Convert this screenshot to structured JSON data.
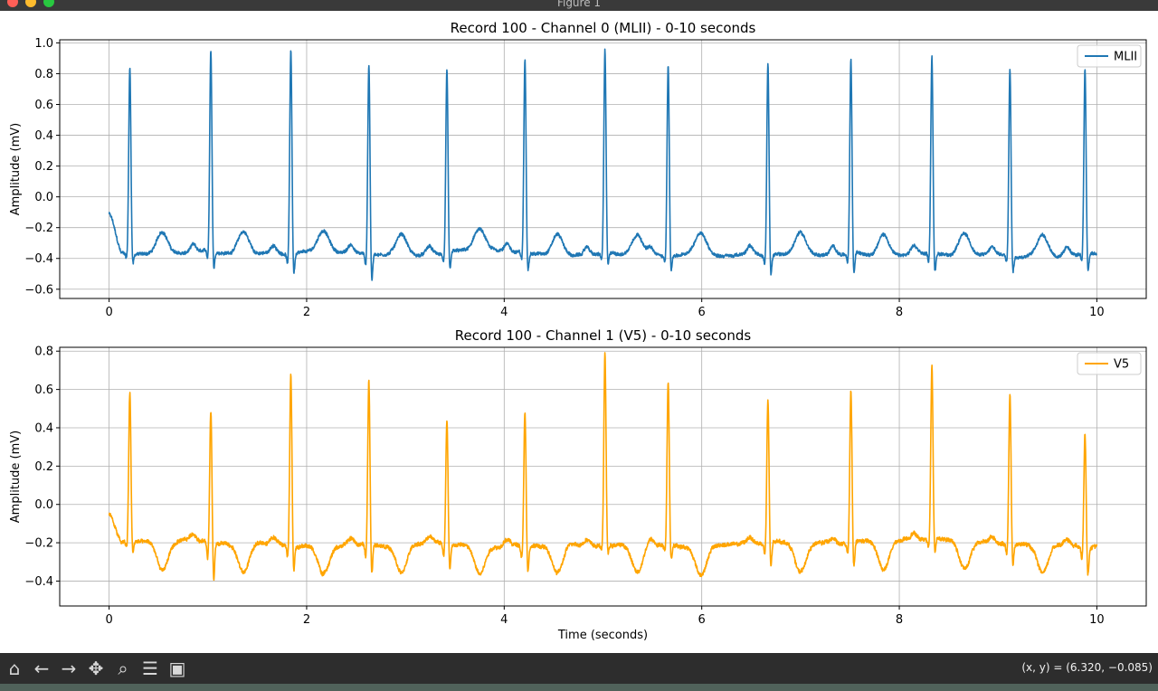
{
  "window": {
    "title": "Figure 1"
  },
  "toolbar": {
    "buttons": [
      {
        "name": "home",
        "icon": "home-icon",
        "glyph": "⌂"
      },
      {
        "name": "back",
        "icon": "arrow-left-icon",
        "glyph": "←"
      },
      {
        "name": "forward",
        "icon": "arrow-right-icon",
        "glyph": "→"
      },
      {
        "name": "pan",
        "icon": "move-icon",
        "glyph": "✥"
      },
      {
        "name": "zoom",
        "icon": "magnifier-icon",
        "glyph": "⌕"
      },
      {
        "name": "configure",
        "icon": "sliders-icon",
        "glyph": "☰"
      },
      {
        "name": "save",
        "icon": "floppy-disk-icon",
        "glyph": "▣"
      }
    ],
    "coords": "(x, y) = (6.320, −0.085)"
  },
  "chart_data": [
    {
      "type": "line",
      "title": "Record 100 - Channel 0 (MLII) - 0-10 seconds",
      "xlabel": "",
      "ylabel": "Amplitude (mV)",
      "xlim": [
        -0.5,
        10.5
      ],
      "ylim": [
        -0.66,
        1.02
      ],
      "xticks": [
        0,
        2,
        4,
        6,
        8,
        10
      ],
      "yticks": [
        -0.6,
        -0.4,
        -0.2,
        0.0,
        0.2,
        0.4,
        0.6,
        0.8,
        1.0
      ],
      "ytick_labels": [
        "−0.6",
        "−0.4",
        "−0.2",
        "0.0",
        "0.2",
        "0.4",
        "0.6",
        "0.8",
        "1.0"
      ],
      "grid": true,
      "legend": "top-right",
      "series": [
        {
          "name": "MLII",
          "color": "#1f77b4",
          "baseline": -0.37,
          "r_times": [
            0.21,
            1.03,
            1.84,
            2.63,
            3.42,
            4.21,
            5.02,
            5.66,
            6.67,
            7.51,
            8.33,
            9.12,
            9.88
          ],
          "r_peaks": [
            0.84,
            0.94,
            0.96,
            0.86,
            0.82,
            0.88,
            0.95,
            0.87,
            0.88,
            0.89,
            0.92,
            0.86,
            0.83
          ],
          "s_troughs": [
            -0.48,
            -0.54,
            -0.57,
            -0.64,
            -0.56,
            -0.55,
            -0.5,
            -0.53,
            -0.57,
            -0.58,
            -0.55,
            -0.53,
            -0.55
          ],
          "t_height": 0.14
        }
      ]
    },
    {
      "type": "line",
      "title": "Record 100 - Channel 1 (V5) - 0-10 seconds",
      "xlabel": "Time (seconds)",
      "ylabel": "Amplitude (mV)",
      "xlim": [
        -0.5,
        10.5
      ],
      "ylim": [
        -0.53,
        0.82
      ],
      "xticks": [
        0,
        2,
        4,
        6,
        8,
        10
      ],
      "yticks": [
        -0.4,
        -0.2,
        0.0,
        0.2,
        0.4,
        0.6,
        0.8
      ],
      "ytick_labels": [
        "−0.4",
        "−0.2",
        "0.0",
        "0.2",
        "0.4",
        "0.6",
        "0.8"
      ],
      "grid": true,
      "legend": "top-right",
      "series": [
        {
          "name": "V5",
          "color": "#ffa500",
          "baseline": -0.2,
          "r_times": [
            0.21,
            1.03,
            1.84,
            2.63,
            3.42,
            4.21,
            5.02,
            5.66,
            6.67,
            7.51,
            8.33,
            9.12,
            9.88
          ],
          "r_peaks": [
            0.58,
            0.49,
            0.7,
            0.65,
            0.44,
            0.51,
            0.8,
            0.66,
            0.54,
            0.6,
            0.7,
            0.58,
            0.4
          ],
          "s_troughs": [
            -0.3,
            -0.47,
            -0.38,
            -0.42,
            -0.4,
            -0.4,
            -0.28,
            -0.32,
            -0.39,
            -0.4,
            -0.33,
            -0.36,
            -0.4
          ],
          "t_height": -0.15
        }
      ]
    }
  ]
}
